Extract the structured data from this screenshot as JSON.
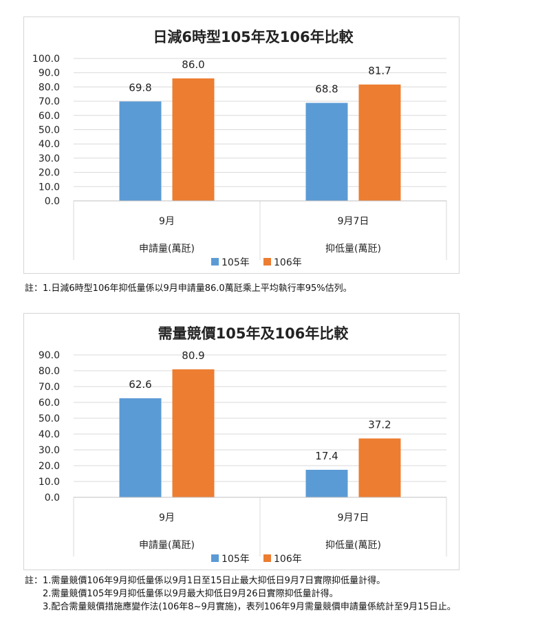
{
  "chart_data": [
    {
      "type": "bar",
      "title": "日減6時型105年及106年比較",
      "categories": [
        {
          "month": "9月",
          "metric": "申請量(萬瓩)"
        },
        {
          "month": "9月7日",
          "metric": "抑低量(萬瓩)"
        }
      ],
      "series": [
        {
          "name": "105年",
          "color": "#5b9bd5",
          "values": [
            69.8,
            68.8
          ]
        },
        {
          "name": "106年",
          "color": "#ed7d31",
          "values": [
            86.0,
            81.7
          ]
        }
      ],
      "ylim": [
        0,
        100
      ],
      "yticks": [
        "0.0",
        "10.0",
        "20.0",
        "30.0",
        "40.0",
        "50.0",
        "60.0",
        "70.0",
        "80.0",
        "90.0",
        "100.0"
      ],
      "grid": true,
      "legend": "bottom"
    },
    {
      "type": "bar",
      "title": "需量競價105年及106年比較",
      "categories": [
        {
          "month": "9月",
          "metric": "申請量(萬瓩)"
        },
        {
          "month": "9月7日",
          "metric": "抑低量(萬瓩)"
        }
      ],
      "series": [
        {
          "name": "105年",
          "color": "#5b9bd5",
          "values": [
            62.6,
            17.4
          ]
        },
        {
          "name": "106年",
          "color": "#ed7d31",
          "values": [
            80.9,
            37.2
          ]
        }
      ],
      "ylim": [
        0,
        90
      ],
      "yticks": [
        "0.0",
        "10.0",
        "20.0",
        "30.0",
        "40.0",
        "50.0",
        "60.0",
        "70.0",
        "80.0",
        "90.0"
      ],
      "grid": true,
      "legend": "bottom"
    }
  ],
  "notes": {
    "note1": [
      "註：1.日減6時型106年抑低量係以9月申請量86.0萬瓩乘上平均執行率95%估列。"
    ],
    "note2": [
      "註：1.需量競價106年9月抑低量係以9月1日至15日止最大抑低日9月7日實際抑低量計得。",
      "2.需量競價105年9月抑低量係以9月最大抑低日9月26日實際抑低量計得。",
      "3.配合需量競價措施應變作法(106年8~9月實施)，表列106年9月需量競價申請量係統計至9月15日止。"
    ]
  }
}
